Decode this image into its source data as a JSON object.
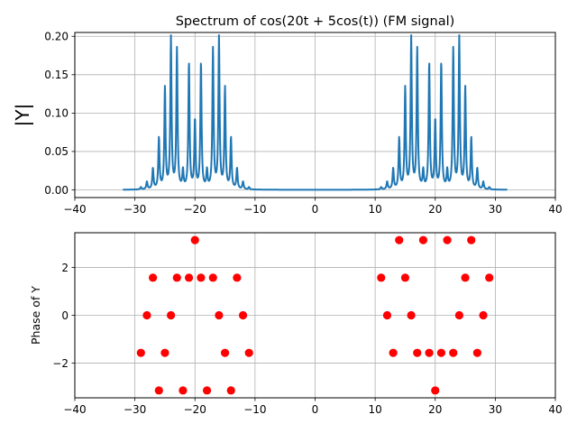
{
  "chart_data": [
    {
      "type": "line",
      "title": "Spectrum of cos(20t + 5cos(t)) (FM signal)",
      "xlabel": "",
      "ylabel": "|Y|",
      "xlim": [
        -40,
        40
      ],
      "ylim": [
        -0.01,
        0.205
      ],
      "xticks": [
        -40,
        -30,
        -20,
        -10,
        0,
        10,
        20,
        30,
        40
      ],
      "yticks": [
        0.0,
        0.05,
        0.1,
        0.15,
        0.2
      ],
      "grid": true,
      "line_color": "#1f77b4",
      "curve_range": [
        -32,
        32
      ],
      "series": [
        {
          "x": [
            -29,
            -28,
            -27,
            -26,
            -25,
            -24,
            -23,
            -22,
            -21,
            -20,
            -19,
            -18,
            -17,
            -16,
            -15,
            -14,
            -13,
            -12,
            -11,
            11,
            12,
            13,
            14,
            15,
            16,
            17,
            18,
            19,
            20,
            21,
            22,
            23,
            24,
            25,
            26,
            27,
            28,
            29
          ],
          "y": [
            0.003,
            0.01,
            0.027,
            0.066,
            0.131,
            0.196,
            0.182,
            0.023,
            0.164,
            0.089,
            0.164,
            0.023,
            0.182,
            0.196,
            0.131,
            0.066,
            0.027,
            0.01,
            0.003,
            0.003,
            0.01,
            0.027,
            0.066,
            0.131,
            0.196,
            0.182,
            0.023,
            0.164,
            0.089,
            0.164,
            0.023,
            0.182,
            0.196,
            0.131,
            0.066,
            0.027,
            0.01,
            0.003
          ]
        }
      ]
    },
    {
      "type": "scatter",
      "title": "",
      "xlabel": "",
      "ylabel": "Phase of Y",
      "xlim": [
        -40,
        40
      ],
      "ylim": [
        -3.45,
        3.45
      ],
      "xticks": [
        -40,
        -30,
        -20,
        -10,
        0,
        10,
        20,
        30,
        40
      ],
      "yticks": [
        -2,
        0,
        2
      ],
      "grid": true,
      "marker_color": "#ff0000",
      "series": [
        {
          "x": [
            -29,
            -28,
            -27,
            -26,
            -25,
            -24,
            -23,
            -22,
            -21,
            -20,
            -19,
            -18,
            -17,
            -16,
            -15,
            -14,
            -13,
            -12,
            -11,
            11,
            12,
            13,
            14,
            15,
            16,
            17,
            18,
            19,
            20,
            21,
            22,
            23,
            24,
            25,
            26,
            27,
            28,
            29
          ],
          "y": [
            -1.571,
            0.0,
            1.571,
            -3.1416,
            -1.571,
            0.0,
            1.571,
            -3.1416,
            1.571,
            3.1416,
            1.571,
            -3.1416,
            1.571,
            0.0,
            -1.571,
            -3.1416,
            1.571,
            0.0,
            -1.571,
            1.571,
            0.0,
            -1.571,
            3.1416,
            1.571,
            0.0,
            -1.571,
            3.1416,
            -1.571,
            -3.1416,
            -1.571,
            3.1416,
            -1.571,
            0.0,
            1.571,
            3.1416,
            -1.571,
            0.0,
            1.571
          ]
        }
      ]
    }
  ]
}
